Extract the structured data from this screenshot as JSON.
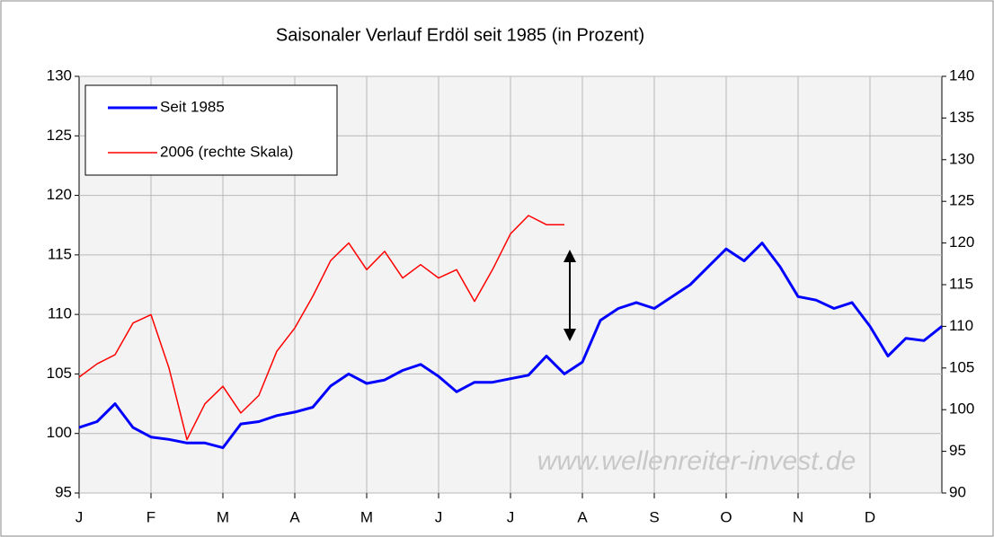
{
  "chart_data": {
    "type": "line",
    "title": "Saisonaler Verlauf Erdöl seit 1985 (in Prozent)",
    "annotation": "www.wellenreiter-invest.de",
    "categories": [
      "J",
      null,
      null,
      null,
      "F",
      null,
      null,
      null,
      "M",
      null,
      null,
      null,
      "A",
      null,
      null,
      null,
      "M",
      null,
      null,
      null,
      "J",
      null,
      null,
      null,
      "J",
      null,
      null,
      null,
      "A",
      null,
      null,
      null,
      "S",
      null,
      null,
      null,
      "O",
      null,
      null,
      null,
      "N",
      null,
      null,
      null,
      "D",
      null,
      null,
      null,
      null
    ],
    "series": [
      {
        "name": "Seit 1985",
        "color": "#0000ff",
        "axis": "y",
        "values": [
          100.5,
          101,
          102.5,
          100.5,
          99.7,
          99.5,
          99.2,
          99.2,
          98.8,
          100.8,
          101,
          101.5,
          101.8,
          102.2,
          104,
          105,
          104.2,
          104.5,
          105.3,
          105.8,
          104.8,
          103.5,
          104.3,
          104.3,
          104.6,
          104.9,
          106.5,
          105,
          106,
          109.5,
          110.5,
          111,
          110.5,
          111.5,
          112.5,
          114,
          115.5,
          114.5,
          116,
          114,
          111.5,
          111.2,
          110.5,
          111,
          109,
          106.5,
          108,
          107.8,
          109
        ]
      },
      {
        "name": "2006 (rechte Skala)",
        "color": "#ff0000",
        "axis": "y2",
        "values": [
          103.9,
          105.5,
          106.6,
          110.4,
          111.4,
          105,
          96.4,
          100.7,
          102.8,
          99.6,
          101.7,
          107,
          109.8,
          113.6,
          117.9,
          120,
          116.8,
          119,
          115.8,
          117.4,
          115.8,
          116.8,
          113,
          116.8,
          121.1,
          123.3,
          122.2,
          122.2,
          null,
          null,
          null,
          null,
          null,
          null,
          null,
          null,
          null,
          null,
          null,
          null,
          null,
          null,
          null,
          null,
          null,
          null,
          null,
          null,
          null
        ]
      }
    ],
    "ylim": [
      95,
      130
    ],
    "yticks": [
      95,
      100,
      105,
      110,
      115,
      120,
      125,
      130
    ],
    "y2lim": [
      90,
      140
    ],
    "y2ticks": [
      90,
      95,
      100,
      105,
      110,
      115,
      120,
      125,
      130,
      135,
      140
    ],
    "grid": true,
    "legend": "upper left"
  }
}
